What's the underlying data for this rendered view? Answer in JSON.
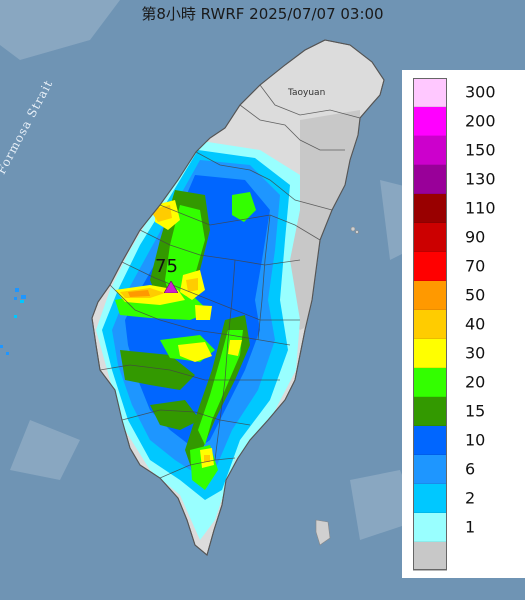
{
  "title": "第8小時  RWRF 2025/07/07 03:00",
  "map_labels": {
    "strait": "Formosa Strait",
    "city": "Taoyuan"
  },
  "max_marker": {
    "value": "75",
    "color": "#cc22cc",
    "icon": "triangle-marker-icon"
  },
  "legend": {
    "items": [
      {
        "label": "300",
        "color": "#ffc8ff"
      },
      {
        "label": "200",
        "color": "#ff00ff"
      },
      {
        "label": "150",
        "color": "#cc00cc"
      },
      {
        "label": "130",
        "color": "#990099"
      },
      {
        "label": "110",
        "color": "#990000"
      },
      {
        "label": "90",
        "color": "#cc0000"
      },
      {
        "label": "70",
        "color": "#ff0000"
      },
      {
        "label": "50",
        "color": "#ff9900"
      },
      {
        "label": "40",
        "color": "#ffcc00"
      },
      {
        "label": "30",
        "color": "#ffff00"
      },
      {
        "label": "20",
        "color": "#33ff00"
      },
      {
        "label": "15",
        "color": "#339900"
      },
      {
        "label": "10",
        "color": "#0066ff"
      },
      {
        "label": "6",
        "color": "#1e96ff"
      },
      {
        "label": "2",
        "color": "#00c8ff"
      },
      {
        "label": "1",
        "color": "#99ffff"
      },
      {
        "label": "",
        "color": "#c8c8c8"
      }
    ]
  },
  "colors": {
    "sea": "#6f94b4",
    "land": "#d9d9d9",
    "no_rain": "#c8c8c8"
  }
}
